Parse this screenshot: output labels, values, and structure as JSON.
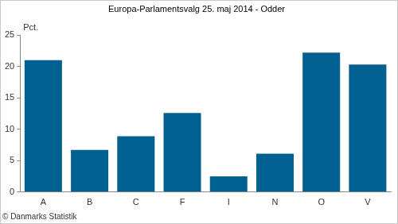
{
  "chart_data": {
    "type": "bar",
    "title": "Europa-Parlamentsvalg 25. maj 2014 - Odder",
    "y_label": "Pct.",
    "source": "© Danmarks Statistik",
    "categories": [
      "A",
      "B",
      "C",
      "F",
      "I",
      "N",
      "O",
      "V"
    ],
    "values": [
      21.0,
      6.7,
      8.9,
      12.6,
      2.5,
      6.1,
      22.2,
      20.3
    ],
    "color": "#00608f",
    "ylim": [
      0,
      25
    ],
    "yticks": [
      0,
      5,
      10,
      15,
      20,
      25
    ],
    "grid": false
  }
}
